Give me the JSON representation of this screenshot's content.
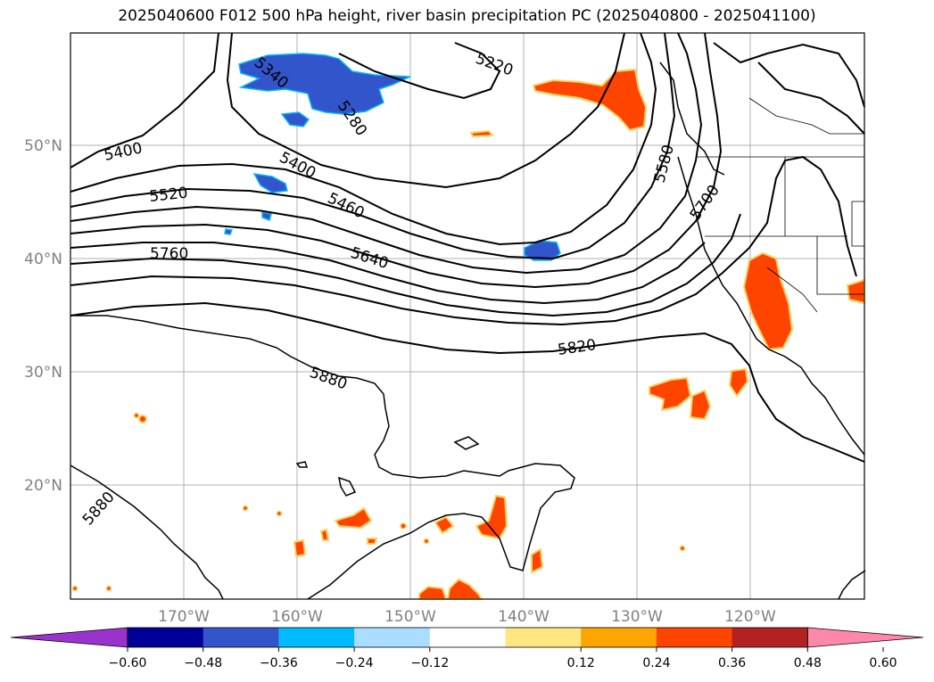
{
  "title": "2025040600 F012 500 hPa height, river basin precipitation PC (2025040800 - 2025041100)",
  "map": {
    "lon_labels": [
      "170°W",
      "160°W",
      "150°W",
      "140°W",
      "130°W",
      "120°W"
    ],
    "lat_labels": [
      "50°N",
      "40°N",
      "30°N",
      "20°N"
    ],
    "contour_labels": [
      {
        "text": "5220",
        "name": "contour-label-5220"
      },
      {
        "text": "5340",
        "name": "contour-label-5340"
      },
      {
        "text": "5280",
        "name": "contour-label-5280"
      },
      {
        "text": "5400",
        "name": "contour-label-5400-west"
      },
      {
        "text": "5400",
        "name": "contour-label-5400-center"
      },
      {
        "text": "5520",
        "name": "contour-label-5520"
      },
      {
        "text": "5460",
        "name": "contour-label-5460"
      },
      {
        "text": "5580",
        "name": "contour-label-5580"
      },
      {
        "text": "5700",
        "name": "contour-label-5700"
      },
      {
        "text": "5760",
        "name": "contour-label-5760"
      },
      {
        "text": "5640",
        "name": "contour-label-5640"
      },
      {
        "text": "5820",
        "name": "contour-label-5820"
      },
      {
        "text": "5880",
        "name": "contour-label-5880-center"
      },
      {
        "text": "5880",
        "name": "contour-label-5880-south"
      }
    ]
  },
  "colorbar": {
    "ticks": [
      "−0.60",
      "−0.48",
      "−0.36",
      "−0.24",
      "−0.12",
      "0.12",
      "0.24",
      "0.36",
      "0.48",
      "0.60"
    ],
    "colors": {
      "under": "#9933cc",
      "bins": [
        "#000099",
        "#3355cc",
        "#00bbff",
        "#aaddff",
        "#ffffff",
        "#ffe680",
        "#ffa500",
        "#ff4400",
        "#b22222"
      ],
      "over": "#ff88aa"
    }
  },
  "legend_colors": {
    "positive_shading": "#ff4400",
    "negative_shading": "#3355cc"
  }
}
